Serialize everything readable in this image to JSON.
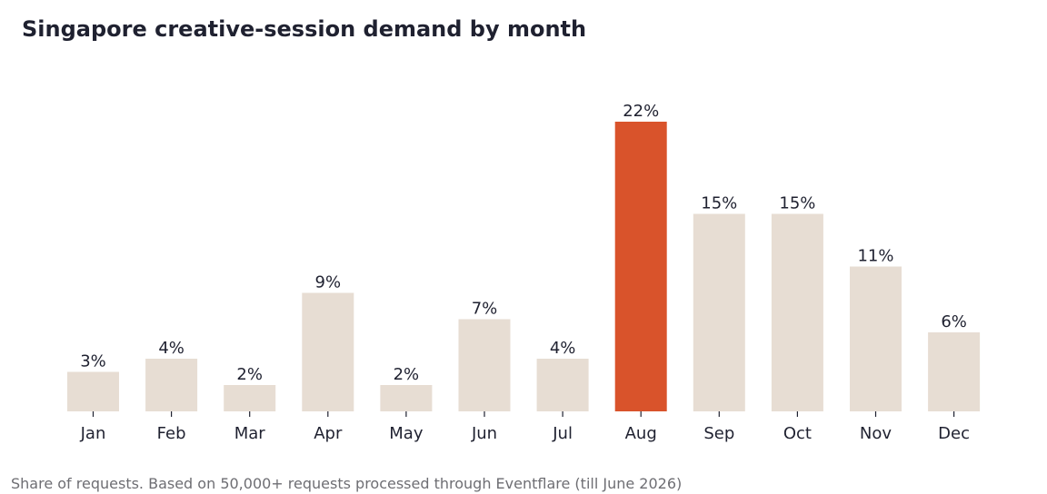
{
  "title": "Singapore creative-session demand by month",
  "footnote": "Share of requests. Based on 50,000+ requests processed through Eventflare (till June 2026)",
  "colors": {
    "bar": "#e7ddd3",
    "highlight": "#d9532b",
    "text": "#1f2130",
    "axis": "#1f2130",
    "footnote": "#6e6e73"
  },
  "chart_data": {
    "type": "bar",
    "title": "Singapore creative-session demand by month",
    "xlabel": "",
    "ylabel": "",
    "categories": [
      "Jan",
      "Feb",
      "Mar",
      "Apr",
      "May",
      "Jun",
      "Jul",
      "Aug",
      "Sep",
      "Oct",
      "Nov",
      "Dec"
    ],
    "values": [
      3,
      4,
      2,
      9,
      2,
      7,
      4,
      22,
      15,
      15,
      11,
      6
    ],
    "value_labels": [
      "3%",
      "4%",
      "2%",
      "9%",
      "2%",
      "7%",
      "4%",
      "22%",
      "15%",
      "15%",
      "11%",
      "6%"
    ],
    "highlight_category": "Aug",
    "ylim": [
      0,
      22
    ],
    "grid": false,
    "legend": "none",
    "y_axis_visible": false
  }
}
